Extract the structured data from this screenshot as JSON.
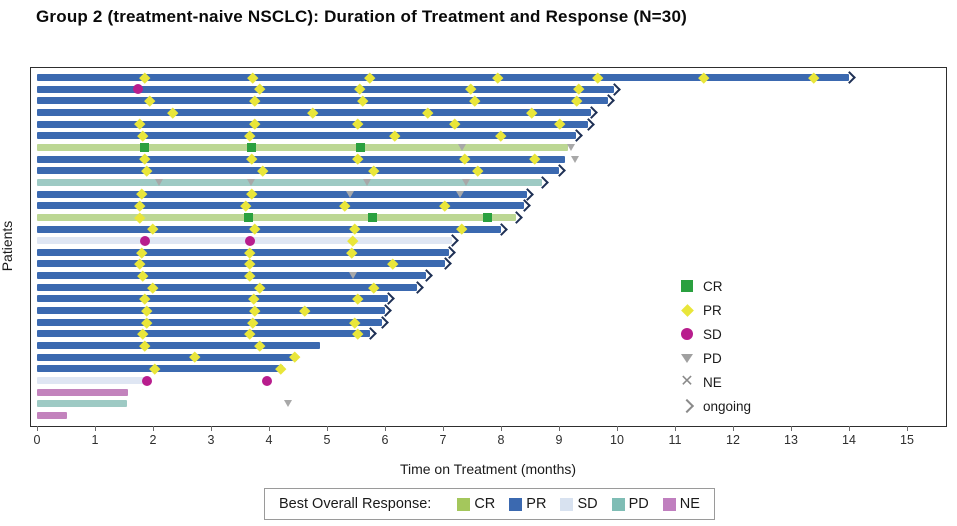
{
  "title": "Group 2 (treatment-naive NSCLC): Duration of Treatment and Response (N=30)",
  "axis": {
    "xlabel": "Time on Treatment (months)",
    "ylabel": "Patients",
    "xmin": 0,
    "xmax": 15,
    "ticks": [
      0,
      1,
      2,
      3,
      4,
      5,
      6,
      7,
      8,
      9,
      10,
      11,
      12,
      13,
      14,
      15
    ]
  },
  "colors": {
    "bar_PR": "#3b69b0",
    "bar_CR": "#bcd794",
    "bar_SD": "#dfe6f3",
    "bar_PD": "#9ecac4",
    "bar_NE": "#c383bd",
    "marker_CR": "#2aa03f",
    "marker_PR": "#e9e63a",
    "marker_SD": "#b81d8d",
    "marker_PD": "#a8a8a8",
    "arrow": "#1e3055",
    "legend_CR": "#a4c75c",
    "legend_PR": "#3b69b0",
    "legend_SD": "#d8e2f0",
    "legend_PD": "#7fbdb5",
    "legend_NE": "#c07fbf"
  },
  "marker_legend": [
    {
      "key": "CR",
      "shape": "square",
      "label": "CR"
    },
    {
      "key": "PR",
      "shape": "diamond",
      "label": "PR"
    },
    {
      "key": "SD",
      "shape": "circle",
      "label": "SD"
    },
    {
      "key": "PD",
      "shape": "triangle",
      "label": "PD"
    },
    {
      "key": "NE",
      "shape": "x",
      "label": "NE"
    },
    {
      "key": "ongoing",
      "shape": "chevron",
      "label": "ongoing"
    }
  ],
  "response_legend": {
    "label": "Best Overall Response:",
    "items": [
      {
        "key": "CR",
        "label": "CR"
      },
      {
        "key": "PR",
        "label": "PR"
      },
      {
        "key": "SD",
        "label": "SD"
      },
      {
        "key": "PD",
        "label": "PD"
      },
      {
        "key": "NE",
        "label": "NE"
      }
    ]
  },
  "chart_data": {
    "type": "swimmer",
    "title": "Group 2 (treatment-naive NSCLC): Duration of Treatment and Response (N=30)",
    "xlabel": "Time on Treatment (months)",
    "ylabel": "Patients",
    "xlim": [
      0,
      15
    ],
    "n_patients": 30,
    "time_unit": "months",
    "patients": [
      {
        "id": 1,
        "best_response": "PR",
        "duration": 14.0,
        "ongoing": true,
        "events": [
          {
            "type": "PR",
            "t": 1.86
          },
          {
            "type": "PR",
            "t": 3.72
          },
          {
            "type": "PR",
            "t": 5.74
          },
          {
            "type": "PR",
            "t": 7.95
          },
          {
            "type": "PR",
            "t": 9.67
          },
          {
            "type": "PR",
            "t": 11.5
          },
          {
            "type": "PR",
            "t": 13.4
          }
        ]
      },
      {
        "id": 2,
        "best_response": "PR",
        "duration": 9.95,
        "ongoing": true,
        "events": [
          {
            "type": "SD",
            "t": 1.74
          },
          {
            "type": "PR",
            "t": 3.84
          },
          {
            "type": "PR",
            "t": 5.57
          },
          {
            "type": "PR",
            "t": 7.47
          },
          {
            "type": "PR",
            "t": 9.34
          }
        ]
      },
      {
        "id": 3,
        "best_response": "PR",
        "duration": 9.85,
        "ongoing": true,
        "events": [
          {
            "type": "PR",
            "t": 1.95
          },
          {
            "type": "PR",
            "t": 3.76
          },
          {
            "type": "PR",
            "t": 5.62
          },
          {
            "type": "PR",
            "t": 7.55
          },
          {
            "type": "PR",
            "t": 9.3
          }
        ]
      },
      {
        "id": 4,
        "best_response": "PR",
        "duration": 9.55,
        "ongoing": true,
        "events": [
          {
            "type": "PR",
            "t": 2.34
          },
          {
            "type": "PR",
            "t": 4.76
          },
          {
            "type": "PR",
            "t": 6.74
          },
          {
            "type": "PR",
            "t": 8.53
          }
        ]
      },
      {
        "id": 5,
        "best_response": "PR",
        "duration": 9.5,
        "ongoing": true,
        "events": [
          {
            "type": "PR",
            "t": 1.78
          },
          {
            "type": "PR",
            "t": 3.76
          },
          {
            "type": "PR",
            "t": 5.53
          },
          {
            "type": "PR",
            "t": 7.2
          },
          {
            "type": "PR",
            "t": 9.02
          }
        ]
      },
      {
        "id": 6,
        "best_response": "PR",
        "duration": 9.3,
        "ongoing": true,
        "events": [
          {
            "type": "PR",
            "t": 1.83
          },
          {
            "type": "PR",
            "t": 3.67
          },
          {
            "type": "PR",
            "t": 6.17
          },
          {
            "type": "PR",
            "t": 8.0
          }
        ]
      },
      {
        "id": 7,
        "best_response": "CR",
        "duration": 9.15,
        "ongoing": false,
        "events": [
          {
            "type": "CR",
            "t": 1.86
          },
          {
            "type": "CR",
            "t": 3.7
          },
          {
            "type": "CR",
            "t": 5.57
          },
          {
            "type": "PD",
            "t": 7.34
          },
          {
            "type": "PD",
            "t": 9.22
          }
        ]
      },
      {
        "id": 8,
        "best_response": "PR",
        "duration": 9.1,
        "ongoing": false,
        "events": [
          {
            "type": "PR",
            "t": 1.86
          },
          {
            "type": "PR",
            "t": 3.7
          },
          {
            "type": "PR",
            "t": 5.53
          },
          {
            "type": "PR",
            "t": 7.38
          },
          {
            "type": "PR",
            "t": 8.59
          },
          {
            "type": "PD",
            "t": 9.28
          }
        ]
      },
      {
        "id": 9,
        "best_response": "PR",
        "duration": 9.0,
        "ongoing": true,
        "events": [
          {
            "type": "PR",
            "t": 1.9
          },
          {
            "type": "PR",
            "t": 3.9
          },
          {
            "type": "PR",
            "t": 5.8
          },
          {
            "type": "PR",
            "t": 7.6
          }
        ]
      },
      {
        "id": 10,
        "best_response": "PD",
        "duration": 8.7,
        "ongoing": true,
        "events": [
          {
            "type": "PD",
            "t": 2.12
          },
          {
            "type": "PD",
            "t": 3.7
          },
          {
            "type": "PD",
            "t": 5.7
          },
          {
            "type": "PD",
            "t": 7.4
          }
        ]
      },
      {
        "id": 11,
        "best_response": "PR",
        "duration": 8.45,
        "ongoing": true,
        "events": [
          {
            "type": "PR",
            "t": 1.8
          },
          {
            "type": "PR",
            "t": 3.7
          },
          {
            "type": "PD",
            "t": 5.4
          },
          {
            "type": "PD",
            "t": 7.3
          }
        ]
      },
      {
        "id": 12,
        "best_response": "PR",
        "duration": 8.4,
        "ongoing": true,
        "events": [
          {
            "type": "PR",
            "t": 1.78
          },
          {
            "type": "PR",
            "t": 3.6
          },
          {
            "type": "PR",
            "t": 5.3
          },
          {
            "type": "PR",
            "t": 7.03
          }
        ]
      },
      {
        "id": 13,
        "best_response": "CR",
        "duration": 8.25,
        "ongoing": true,
        "events": [
          {
            "type": "PR",
            "t": 1.78
          },
          {
            "type": "CR",
            "t": 3.64
          },
          {
            "type": "CR",
            "t": 5.78
          },
          {
            "type": "CR",
            "t": 7.76
          }
        ]
      },
      {
        "id": 14,
        "best_response": "PR",
        "duration": 8.0,
        "ongoing": true,
        "events": [
          {
            "type": "PR",
            "t": 2.0
          },
          {
            "type": "PR",
            "t": 3.76
          },
          {
            "type": "PR",
            "t": 5.47
          },
          {
            "type": "PR",
            "t": 7.33
          }
        ]
      },
      {
        "id": 15,
        "best_response": "SD",
        "duration": 7.15,
        "ongoing": true,
        "events": [
          {
            "type": "SD",
            "t": 1.86
          },
          {
            "type": "SD",
            "t": 3.67
          },
          {
            "type": "PR",
            "t": 5.45
          }
        ]
      },
      {
        "id": 16,
        "best_response": "PR",
        "duration": 7.1,
        "ongoing": true,
        "events": [
          {
            "type": "PR",
            "t": 1.8
          },
          {
            "type": "PR",
            "t": 3.67
          },
          {
            "type": "PR",
            "t": 5.43
          }
        ]
      },
      {
        "id": 17,
        "best_response": "PR",
        "duration": 7.03,
        "ongoing": true,
        "events": [
          {
            "type": "PR",
            "t": 1.78
          },
          {
            "type": "PR",
            "t": 3.67
          },
          {
            "type": "PR",
            "t": 6.14
          }
        ]
      },
      {
        "id": 18,
        "best_response": "PR",
        "duration": 6.7,
        "ongoing": true,
        "events": [
          {
            "type": "PR",
            "t": 1.83
          },
          {
            "type": "PR",
            "t": 3.67
          },
          {
            "type": "PD",
            "t": 5.45
          }
        ]
      },
      {
        "id": 19,
        "best_response": "PR",
        "duration": 6.55,
        "ongoing": true,
        "events": [
          {
            "type": "PR",
            "t": 2.0
          },
          {
            "type": "PR",
            "t": 3.84
          },
          {
            "type": "PR",
            "t": 5.8
          }
        ]
      },
      {
        "id": 20,
        "best_response": "PR",
        "duration": 6.05,
        "ongoing": true,
        "events": [
          {
            "type": "PR",
            "t": 1.86
          },
          {
            "type": "PR",
            "t": 3.74
          },
          {
            "type": "PR",
            "t": 5.53
          }
        ]
      },
      {
        "id": 21,
        "best_response": "PR",
        "duration": 6.0,
        "ongoing": true,
        "events": [
          {
            "type": "PR",
            "t": 1.9
          },
          {
            "type": "PR",
            "t": 3.76
          },
          {
            "type": "PR",
            "t": 4.62
          }
        ]
      },
      {
        "id": 22,
        "best_response": "PR",
        "duration": 5.95,
        "ongoing": true,
        "events": [
          {
            "type": "PR",
            "t": 1.9
          },
          {
            "type": "PR",
            "t": 3.72
          },
          {
            "type": "PR",
            "t": 5.48
          }
        ]
      },
      {
        "id": 23,
        "best_response": "PR",
        "duration": 5.74,
        "ongoing": true,
        "events": [
          {
            "type": "PR",
            "t": 1.83
          },
          {
            "type": "PR",
            "t": 3.67
          },
          {
            "type": "PR",
            "t": 5.53
          }
        ]
      },
      {
        "id": 24,
        "best_response": "PR",
        "duration": 4.88,
        "ongoing": false,
        "events": [
          {
            "type": "PR",
            "t": 1.86
          },
          {
            "type": "PR",
            "t": 3.84
          }
        ]
      },
      {
        "id": 25,
        "best_response": "PR",
        "duration": 4.48,
        "ongoing": false,
        "events": [
          {
            "type": "PR",
            "t": 2.72
          },
          {
            "type": "PR",
            "t": 4.45
          }
        ]
      },
      {
        "id": 26,
        "best_response": "PR",
        "duration": 4.24,
        "ongoing": false,
        "events": [
          {
            "type": "PR",
            "t": 2.03
          },
          {
            "type": "PR",
            "t": 4.2
          }
        ]
      },
      {
        "id": 27,
        "best_response": "SD",
        "duration": 1.9,
        "ongoing": false,
        "events": [
          {
            "type": "SD",
            "t": 1.9
          },
          {
            "type": "SD",
            "t": 3.96
          }
        ]
      },
      {
        "id": 28,
        "best_response": "NE",
        "duration": 1.57,
        "ongoing": false,
        "events": []
      },
      {
        "id": 29,
        "best_response": "PD",
        "duration": 1.55,
        "ongoing": false,
        "events": [
          {
            "type": "PD",
            "t": 4.33
          }
        ]
      },
      {
        "id": 30,
        "best_response": "NE",
        "duration": 0.52,
        "ongoing": false,
        "events": []
      }
    ],
    "marker_legend": [
      "CR",
      "PR",
      "SD",
      "PD",
      "NE",
      "ongoing"
    ],
    "bottom_legend": {
      "label": "Best Overall Response:",
      "items": [
        "CR",
        "PR",
        "SD",
        "PD",
        "NE"
      ]
    },
    "layout": {
      "grid": false,
      "marker_legend_position": "middle-right",
      "response_legend_position": "bottom-center"
    }
  }
}
